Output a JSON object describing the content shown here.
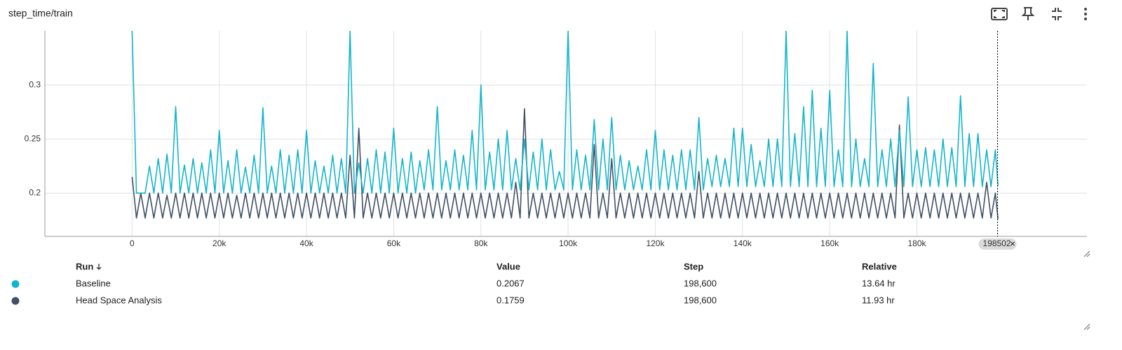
{
  "header": {
    "title": "step_time/train"
  },
  "chart_data": {
    "type": "line",
    "x": [
      0,
      1000,
      2000,
      3000,
      4000,
      5000,
      6000,
      7000,
      8000,
      9000,
      10000,
      11000,
      12000,
      13000,
      14000,
      15000,
      16000,
      17000,
      18000,
      19000,
      20000,
      21000,
      22000,
      23000,
      24000,
      25000,
      26000,
      27000,
      28000,
      29000,
      30000,
      31000,
      32000,
      33000,
      34000,
      35000,
      36000,
      37000,
      38000,
      39000,
      40000,
      41000,
      42000,
      43000,
      44000,
      45000,
      46000,
      47000,
      48000,
      49000,
      50000,
      51000,
      52000,
      53000,
      54000,
      55000,
      56000,
      57000,
      58000,
      59000,
      60000,
      61000,
      62000,
      63000,
      64000,
      65000,
      66000,
      67000,
      68000,
      69000,
      70000,
      71000,
      72000,
      73000,
      74000,
      75000,
      76000,
      77000,
      78000,
      79000,
      80000,
      81000,
      82000,
      83000,
      84000,
      85000,
      86000,
      87000,
      88000,
      89000,
      90000,
      91000,
      92000,
      93000,
      94000,
      95000,
      96000,
      97000,
      98000,
      99000,
      100000,
      101000,
      102000,
      103000,
      104000,
      105000,
      106000,
      107000,
      108000,
      109000,
      110000,
      111000,
      112000,
      113000,
      114000,
      115000,
      116000,
      117000,
      118000,
      119000,
      120000,
      121000,
      122000,
      123000,
      124000,
      125000,
      126000,
      127000,
      128000,
      129000,
      130000,
      131000,
      132000,
      133000,
      134000,
      135000,
      136000,
      137000,
      138000,
      139000,
      140000,
      141000,
      142000,
      143000,
      144000,
      145000,
      146000,
      147000,
      148000,
      149000,
      150000,
      151000,
      152000,
      153000,
      154000,
      155000,
      156000,
      157000,
      158000,
      159000,
      160000,
      161000,
      162000,
      163000,
      164000,
      165000,
      166000,
      167000,
      168000,
      169000,
      170000,
      171000,
      172000,
      173000,
      174000,
      175000,
      176000,
      177000,
      178000,
      179000,
      180000,
      181000,
      182000,
      183000,
      184000,
      185000,
      186000,
      187000,
      188000,
      189000,
      190000,
      191000,
      192000,
      193000,
      194000,
      195000,
      196000,
      197000,
      198000,
      198600
    ],
    "xlim": [
      -20000,
      219000
    ],
    "xticks": [
      0,
      {
        "value": 20000,
        "label": "20k"
      },
      {
        "value": 40000,
        "label": "40k"
      },
      {
        "value": 60000,
        "label": "60k"
      },
      {
        "value": 80000,
        "label": "80k"
      },
      {
        "value": 100000,
        "label": "100k"
      },
      {
        "value": 120000,
        "label": "120k"
      },
      {
        "value": 140000,
        "label": "140k"
      },
      {
        "value": 160000,
        "label": "160k"
      },
      {
        "value": 180000,
        "label": "180k"
      }
    ],
    "ylim": [
      0.16,
      0.35
    ],
    "yticks": [
      0.2,
      0.25,
      0.3
    ],
    "grid": true,
    "cursor_step": 198502,
    "series": [
      {
        "name": "Baseline",
        "color": "#12b5cb",
        "values": [
          0.35,
          0.2,
          0.2,
          0.2,
          0.225,
          0.2,
          0.232,
          0.2,
          0.236,
          0.2,
          0.28,
          0.2,
          0.226,
          0.2,
          0.232,
          0.2,
          0.228,
          0.2,
          0.24,
          0.2,
          0.258,
          0.2,
          0.23,
          0.2,
          0.24,
          0.2,
          0.224,
          0.2,
          0.235,
          0.2,
          0.279,
          0.2,
          0.225,
          0.2,
          0.24,
          0.2,
          0.235,
          0.2,
          0.24,
          0.2,
          0.258,
          0.2,
          0.23,
          0.2,
          0.225,
          0.2,
          0.235,
          0.2,
          0.232,
          0.2,
          0.35,
          0.2,
          0.228,
          0.2,
          0.232,
          0.2,
          0.24,
          0.2,
          0.238,
          0.2,
          0.26,
          0.2,
          0.232,
          0.2,
          0.238,
          0.2,
          0.23,
          0.203,
          0.24,
          0.203,
          0.28,
          0.203,
          0.23,
          0.203,
          0.24,
          0.203,
          0.235,
          0.203,
          0.258,
          0.203,
          0.3,
          0.203,
          0.238,
          0.203,
          0.25,
          0.203,
          0.258,
          0.203,
          0.232,
          0.203,
          0.25,
          0.203,
          0.238,
          0.203,
          0.25,
          0.203,
          0.24,
          0.203,
          0.22,
          0.203,
          0.35,
          0.203,
          0.24,
          0.203,
          0.235,
          0.203,
          0.268,
          0.203,
          0.25,
          0.203,
          0.27,
          0.203,
          0.235,
          0.203,
          0.23,
          0.203,
          0.225,
          0.203,
          0.24,
          0.203,
          0.258,
          0.203,
          0.24,
          0.203,
          0.235,
          0.203,
          0.24,
          0.203,
          0.24,
          0.203,
          0.27,
          0.203,
          0.232,
          0.206,
          0.235,
          0.206,
          0.232,
          0.206,
          0.26,
          0.206,
          0.26,
          0.206,
          0.245,
          0.206,
          0.23,
          0.206,
          0.25,
          0.206,
          0.25,
          0.206,
          0.35,
          0.206,
          0.255,
          0.206,
          0.28,
          0.206,
          0.295,
          0.206,
          0.26,
          0.206,
          0.295,
          0.206,
          0.24,
          0.206,
          0.35,
          0.206,
          0.25,
          0.206,
          0.232,
          0.206,
          0.32,
          0.206,
          0.24,
          0.206,
          0.25,
          0.206,
          0.258,
          0.206,
          0.289,
          0.206,
          0.24,
          0.206,
          0.242,
          0.206,
          0.24,
          0.206,
          0.25,
          0.206,
          0.242,
          0.206,
          0.29,
          0.206,
          0.255,
          0.206,
          0.255,
          0.206,
          0.24,
          0.206,
          0.24,
          0.2067
        ]
      },
      {
        "name": "Head Space Analysis",
        "color": "#425066",
        "values": [
          0.215,
          0.177,
          0.2,
          0.177,
          0.2,
          0.177,
          0.2,
          0.177,
          0.198,
          0.177,
          0.2,
          0.177,
          0.2,
          0.177,
          0.2,
          0.177,
          0.2,
          0.177,
          0.2,
          0.177,
          0.2,
          0.177,
          0.2,
          0.177,
          0.198,
          0.177,
          0.2,
          0.177,
          0.2,
          0.177,
          0.2,
          0.177,
          0.2,
          0.177,
          0.2,
          0.177,
          0.2,
          0.177,
          0.2,
          0.177,
          0.2,
          0.177,
          0.2,
          0.177,
          0.2,
          0.177,
          0.2,
          0.177,
          0.2,
          0.177,
          0.235,
          0.177,
          0.26,
          0.177,
          0.2,
          0.177,
          0.2,
          0.177,
          0.2,
          0.177,
          0.2,
          0.177,
          0.2,
          0.177,
          0.2,
          0.177,
          0.2,
          0.177,
          0.2,
          0.177,
          0.2,
          0.177,
          0.2,
          0.177,
          0.2,
          0.177,
          0.2,
          0.177,
          0.2,
          0.177,
          0.2,
          0.177,
          0.2,
          0.177,
          0.2,
          0.177,
          0.2,
          0.177,
          0.21,
          0.177,
          0.278,
          0.177,
          0.2,
          0.177,
          0.2,
          0.177,
          0.2,
          0.177,
          0.2,
          0.177,
          0.2,
          0.177,
          0.2,
          0.177,
          0.2,
          0.177,
          0.245,
          0.177,
          0.2,
          0.177,
          0.232,
          0.177,
          0.2,
          0.177,
          0.2,
          0.177,
          0.2,
          0.177,
          0.2,
          0.177,
          0.2,
          0.177,
          0.2,
          0.177,
          0.2,
          0.177,
          0.2,
          0.177,
          0.2,
          0.177,
          0.22,
          0.177,
          0.2,
          0.177,
          0.2,
          0.177,
          0.2,
          0.177,
          0.2,
          0.177,
          0.2,
          0.177,
          0.2,
          0.177,
          0.2,
          0.177,
          0.2,
          0.177,
          0.2,
          0.177,
          0.2,
          0.177,
          0.2,
          0.177,
          0.2,
          0.177,
          0.2,
          0.177,
          0.2,
          0.177,
          0.2,
          0.177,
          0.2,
          0.177,
          0.2,
          0.177,
          0.2,
          0.177,
          0.2,
          0.177,
          0.2,
          0.177,
          0.2,
          0.177,
          0.2,
          0.177,
          0.263,
          0.177,
          0.2,
          0.177,
          0.2,
          0.177,
          0.2,
          0.177,
          0.2,
          0.177,
          0.2,
          0.177,
          0.2,
          0.177,
          0.2,
          0.177,
          0.2,
          0.177,
          0.2,
          0.177,
          0.21,
          0.177,
          0.2,
          0.1759
        ]
      }
    ]
  },
  "table": {
    "columns": [
      "Run",
      "Value",
      "Step",
      "Relative"
    ],
    "rows": [
      [
        "Baseline",
        "0.2067",
        "198,600",
        "13.64 hr"
      ],
      [
        "Head Space Analysis",
        "0.1759",
        "198,600",
        "11.93 hr"
      ]
    ]
  }
}
